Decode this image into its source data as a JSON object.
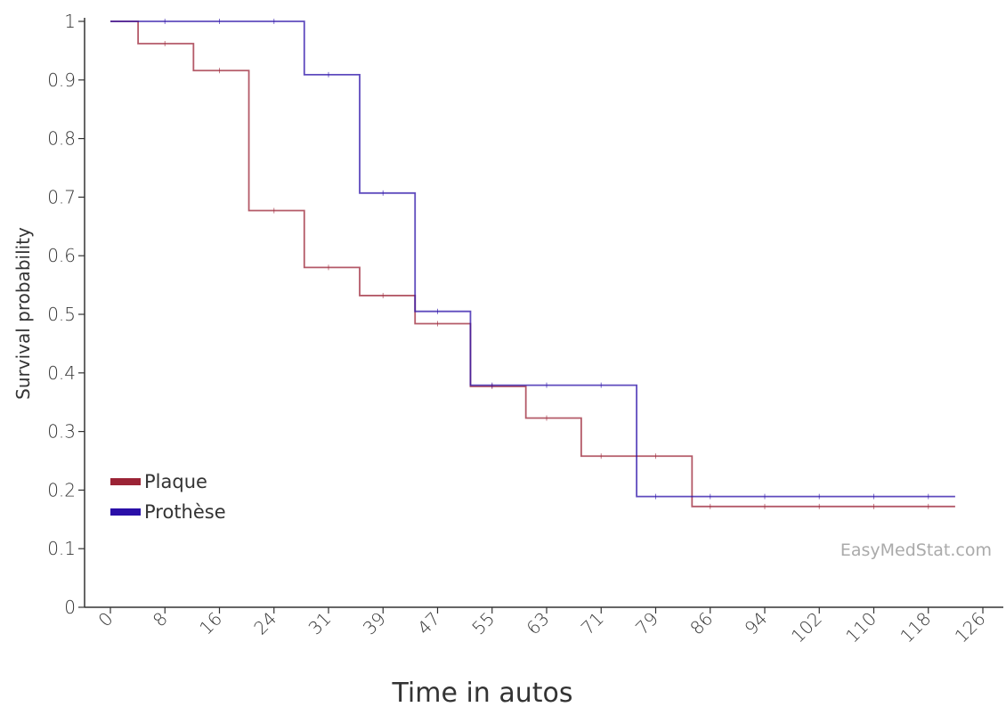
{
  "chart_data": {
    "type": "line",
    "step": true,
    "xlabel": "Time in autos",
    "ylabel": "Survival probability",
    "xlim": [
      0,
      126
    ],
    "ylim": [
      0,
      1
    ],
    "x_ticks": [
      "0",
      "8",
      "16",
      "24",
      "31",
      "39",
      "47",
      "55",
      "63",
      "71",
      "79",
      "86",
      "94",
      "102",
      "110",
      "118",
      "126"
    ],
    "y_ticks": [
      "0",
      "0.1",
      "0.2",
      "0.3",
      "0.4",
      "0.5",
      "0.6",
      "0.7",
      "0.8",
      "0.9",
      "1"
    ],
    "legend_position": "bottom-left",
    "series": [
      {
        "name": "Plaque",
        "color": "#9b2335",
        "x": [
          0,
          4,
          12,
          20,
          28,
          36,
          44,
          52,
          60,
          68,
          84,
          122
        ],
        "y": [
          1.0,
          0.962,
          0.916,
          0.677,
          0.58,
          0.532,
          0.484,
          0.377,
          0.323,
          0.258,
          0.172,
          0.172
        ]
      },
      {
        "name": "Prothèse",
        "color": "#2a0fa8",
        "x": [
          0,
          28,
          36,
          44,
          52,
          76,
          122
        ],
        "y": [
          1.0,
          0.909,
          0.707,
          0.505,
          0.379,
          0.189,
          0.189
        ]
      }
    ]
  },
  "watermark": "EasyMedStat.com"
}
